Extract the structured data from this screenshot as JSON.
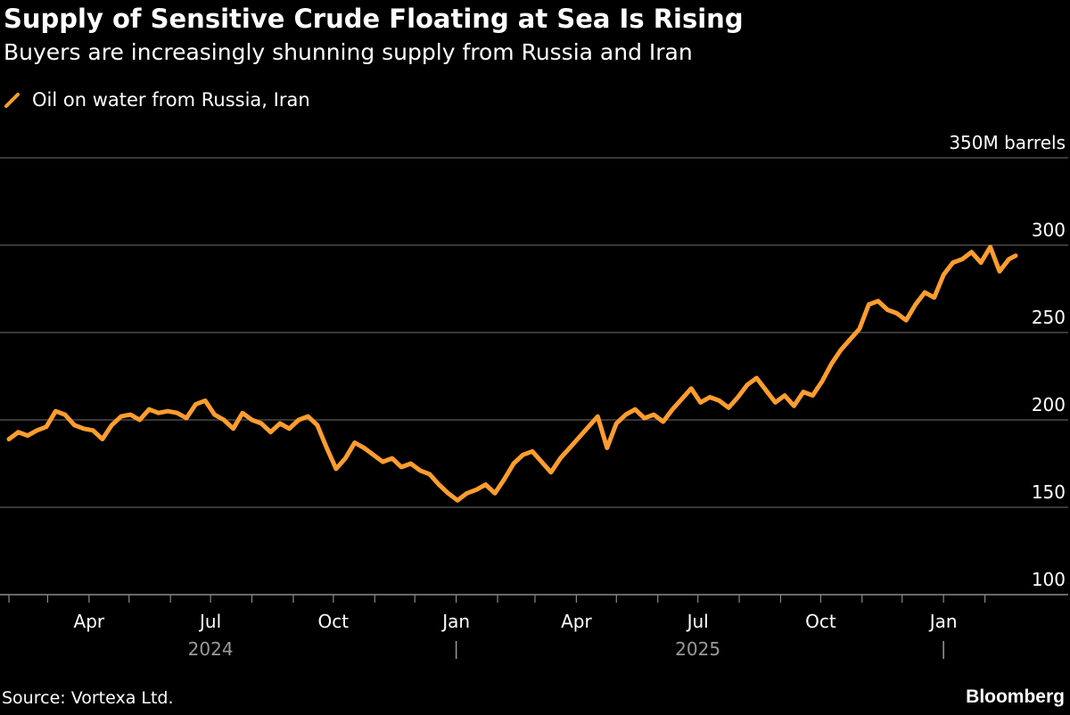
{
  "title": "Supply of Sensitive Crude Floating at Sea Is Rising",
  "subtitle": "Buyers are increasingly shunning supply from Russia and Iran",
  "source": "Source: Vortexa Ltd.",
  "brand": "Bloomberg",
  "colors": {
    "background": "#000000",
    "series": "#ff9d2e",
    "grid": "#5a5a5a"
  },
  "chart_data": {
    "type": "line",
    "ylabel": "",
    "y_unit_label": "350M barrels",
    "ylim": [
      100,
      350
    ],
    "y_ticks": [
      100,
      150,
      200,
      250,
      300,
      350
    ],
    "y_tick_labels": [
      "100",
      "150",
      "200",
      "250",
      "300",
      "350M barrels"
    ],
    "xlim": [
      "2024-02-01",
      "2026-02-28"
    ],
    "x_ticks": [
      {
        "date": "2024-04-01",
        "label": "Apr"
      },
      {
        "date": "2024-07-01",
        "label": "Jul"
      },
      {
        "date": "2024-10-01",
        "label": "Oct"
      },
      {
        "date": "2025-01-01",
        "label": "Jan"
      },
      {
        "date": "2025-04-01",
        "label": "Apr"
      },
      {
        "date": "2025-07-01",
        "label": "Jul"
      },
      {
        "date": "2025-10-01",
        "label": "Oct"
      },
      {
        "date": "2026-01-01",
        "label": "Jan"
      }
    ],
    "year_labels": [
      {
        "label": "2024",
        "center": "2024-07-01"
      },
      {
        "label": "2025",
        "center": "2025-07-01"
      }
    ],
    "year_dividers": [
      "2025-01-01",
      "2026-01-01"
    ],
    "legend": "top-left",
    "grid": true,
    "series": [
      {
        "name": "Oil on water from Russia, Iran",
        "color": "#ff9d2e",
        "points": [
          [
            "2024-02-01",
            189
          ],
          [
            "2024-02-08",
            193
          ],
          [
            "2024-02-15",
            191
          ],
          [
            "2024-02-22",
            194
          ],
          [
            "2024-02-29",
            196
          ],
          [
            "2024-03-07",
            205
          ],
          [
            "2024-03-14",
            203
          ],
          [
            "2024-03-21",
            197
          ],
          [
            "2024-03-28",
            195
          ],
          [
            "2024-04-04",
            194
          ],
          [
            "2024-04-11",
            189
          ],
          [
            "2024-04-18",
            197
          ],
          [
            "2024-04-25",
            202
          ],
          [
            "2024-05-02",
            203
          ],
          [
            "2024-05-09",
            200
          ],
          [
            "2024-05-16",
            206
          ],
          [
            "2024-05-23",
            204
          ],
          [
            "2024-05-30",
            205
          ],
          [
            "2024-06-06",
            204
          ],
          [
            "2024-06-13",
            201
          ],
          [
            "2024-06-20",
            209
          ],
          [
            "2024-06-27",
            211
          ],
          [
            "2024-07-04",
            203
          ],
          [
            "2024-07-11",
            200
          ],
          [
            "2024-07-18",
            195
          ],
          [
            "2024-07-25",
            204
          ],
          [
            "2024-08-01",
            200
          ],
          [
            "2024-08-08",
            198
          ],
          [
            "2024-08-15",
            193
          ],
          [
            "2024-08-22",
            198
          ],
          [
            "2024-08-29",
            195
          ],
          [
            "2024-09-05",
            200
          ],
          [
            "2024-09-12",
            202
          ],
          [
            "2024-09-19",
            197
          ],
          [
            "2024-09-26",
            184
          ],
          [
            "2024-10-03",
            172
          ],
          [
            "2024-10-10",
            178
          ],
          [
            "2024-10-17",
            187
          ],
          [
            "2024-10-24",
            184
          ],
          [
            "2024-10-31",
            180
          ],
          [
            "2024-11-07",
            176
          ],
          [
            "2024-11-14",
            178
          ],
          [
            "2024-11-21",
            173
          ],
          [
            "2024-11-28",
            175
          ],
          [
            "2024-12-05",
            171
          ],
          [
            "2024-12-12",
            169
          ],
          [
            "2024-12-19",
            163
          ],
          [
            "2024-12-26",
            158
          ],
          [
            "2025-01-02",
            154
          ],
          [
            "2025-01-09",
            158
          ],
          [
            "2025-01-16",
            160
          ],
          [
            "2025-01-23",
            163
          ],
          [
            "2025-01-30",
            158
          ],
          [
            "2025-02-06",
            166
          ],
          [
            "2025-02-13",
            175
          ],
          [
            "2025-02-20",
            180
          ],
          [
            "2025-02-27",
            182
          ],
          [
            "2025-03-06",
            176
          ],
          [
            "2025-03-13",
            170
          ],
          [
            "2025-03-20",
            178
          ],
          [
            "2025-03-27",
            184
          ],
          [
            "2025-04-03",
            190
          ],
          [
            "2025-04-10",
            196
          ],
          [
            "2025-04-17",
            202
          ],
          [
            "2025-04-24",
            184
          ],
          [
            "2025-05-01",
            198
          ],
          [
            "2025-05-08",
            203
          ],
          [
            "2025-05-15",
            206
          ],
          [
            "2025-05-22",
            201
          ],
          [
            "2025-05-29",
            203
          ],
          [
            "2025-06-05",
            199
          ],
          [
            "2025-06-12",
            206
          ],
          [
            "2025-06-19",
            212
          ],
          [
            "2025-06-26",
            218
          ],
          [
            "2025-07-03",
            210
          ],
          [
            "2025-07-10",
            213
          ],
          [
            "2025-07-17",
            211
          ],
          [
            "2025-07-24",
            207
          ],
          [
            "2025-07-31",
            213
          ],
          [
            "2025-08-07",
            220
          ],
          [
            "2025-08-14",
            224
          ],
          [
            "2025-08-21",
            217
          ],
          [
            "2025-08-28",
            210
          ],
          [
            "2025-09-04",
            214
          ],
          [
            "2025-09-11",
            208
          ],
          [
            "2025-09-18",
            216
          ],
          [
            "2025-09-25",
            214
          ],
          [
            "2025-10-02",
            222
          ],
          [
            "2025-10-09",
            232
          ],
          [
            "2025-10-16",
            240
          ],
          [
            "2025-10-23",
            246
          ],
          [
            "2025-10-30",
            252
          ],
          [
            "2025-11-06",
            266
          ],
          [
            "2025-11-13",
            268
          ],
          [
            "2025-11-20",
            263
          ],
          [
            "2025-11-27",
            261
          ],
          [
            "2025-12-04",
            257
          ],
          [
            "2025-12-11",
            266
          ],
          [
            "2025-12-18",
            273
          ],
          [
            "2025-12-25",
            270
          ],
          [
            "2026-01-01",
            283
          ],
          [
            "2026-01-08",
            290
          ],
          [
            "2026-01-15",
            292
          ],
          [
            "2026-01-22",
            296
          ],
          [
            "2026-01-29",
            290
          ],
          [
            "2026-02-05",
            299
          ],
          [
            "2026-02-12",
            285
          ],
          [
            "2026-02-19",
            292
          ],
          [
            "2026-02-24",
            294
          ]
        ]
      }
    ]
  }
}
